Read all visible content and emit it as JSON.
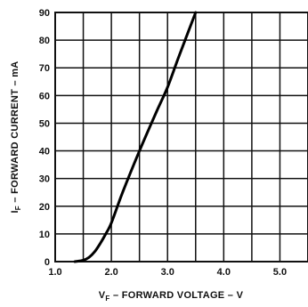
{
  "chart_data": {
    "type": "line",
    "title": "",
    "xlabel": "V",
    "xlabel_sub": "F",
    "xlabel_rest": " – FORWARD VOLTAGE – V",
    "ylabel": "I",
    "ylabel_sub": "F",
    "ylabel_rest": " – FORWARD CURRENT – mA",
    "xlim": [
      1.0,
      5.5
    ],
    "ylim": [
      0,
      90
    ],
    "x_ticks": [
      1.0,
      2.0,
      3.0,
      4.0,
      5.0
    ],
    "x_tick_labels": [
      "1.0",
      "2.0",
      "3.0",
      "4.0",
      "5.0"
    ],
    "x_grid_step": 0.5,
    "y_ticks": [
      0,
      10,
      20,
      30,
      40,
      50,
      60,
      70,
      80,
      90
    ],
    "y_tick_labels": [
      "0",
      "10",
      "20",
      "30",
      "40",
      "50",
      "60",
      "70",
      "80",
      "90"
    ],
    "grid": true,
    "line_color": "#000000",
    "series": [
      {
        "x": [
          1.35,
          1.5,
          1.6,
          1.7,
          1.8,
          1.9,
          2.0,
          2.2,
          2.5,
          2.8,
          3.0,
          3.2,
          3.5
        ],
        "y": [
          0,
          0.5,
          1.5,
          3.5,
          6.5,
          10,
          14,
          25,
          40,
          54,
          63,
          74,
          90
        ]
      }
    ]
  }
}
